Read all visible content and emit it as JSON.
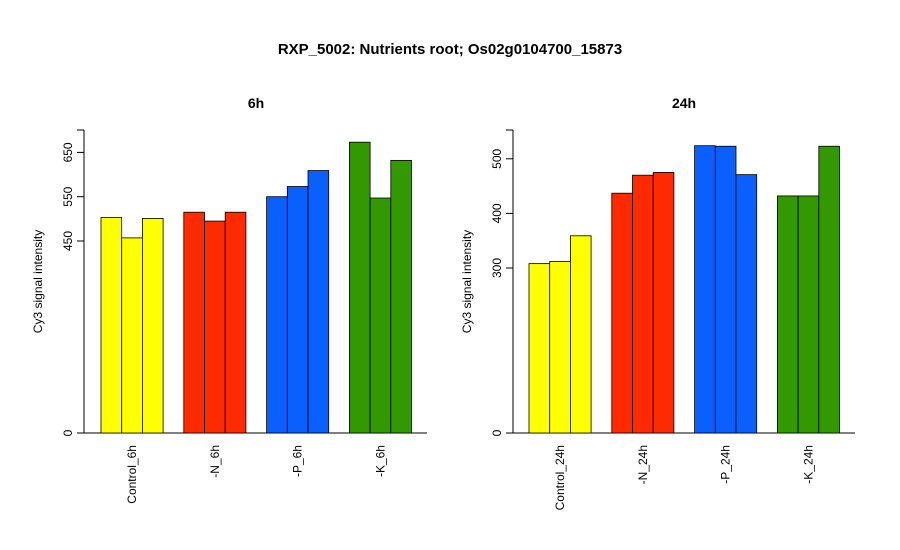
{
  "title": "RXP_5002: Nutrients root; Os02g0104700_15873",
  "colors": {
    "control": "#ffff00",
    "n": "#ff2a00",
    "p": "#0a5fff",
    "k": "#339900",
    "stroke": "#000000"
  },
  "chart_data": [
    {
      "type": "bar",
      "title": "6h",
      "ylabel": "Cy3 signal intensity",
      "ylim": [
        0,
        693
      ],
      "yticks": [
        0,
        450,
        550,
        650
      ],
      "axis_break": true,
      "groups": [
        {
          "label": "Control_6h",
          "color_key": "control",
          "values": [
            503,
            457,
            501
          ]
        },
        {
          "label": "-N_6h",
          "color_key": "n",
          "values": [
            515,
            495,
            515
          ]
        },
        {
          "label": "-P_6h",
          "color_key": "p",
          "values": [
            550,
            573,
            609
          ]
        },
        {
          "label": "-K_6h",
          "color_key": "k",
          "values": [
            673,
            547,
            632
          ]
        }
      ]
    },
    {
      "type": "bar",
      "title": "24h",
      "ylabel": "Cy3 signal intensity",
      "ylim": [
        0,
        526
      ],
      "yticks": [
        0,
        300,
        400,
        500
      ],
      "axis_break": true,
      "groups": [
        {
          "label": "Control_24h",
          "color_key": "control",
          "values": [
            308,
            312,
            359
          ]
        },
        {
          "label": "-N_24h",
          "color_key": "n",
          "values": [
            437,
            470,
            475
          ]
        },
        {
          "label": "-P_24h",
          "color_key": "p",
          "values": [
            524,
            523,
            471
          ]
        },
        {
          "label": "-K_24h",
          "color_key": "k",
          "values": [
            432,
            432,
            523
          ]
        }
      ]
    }
  ]
}
